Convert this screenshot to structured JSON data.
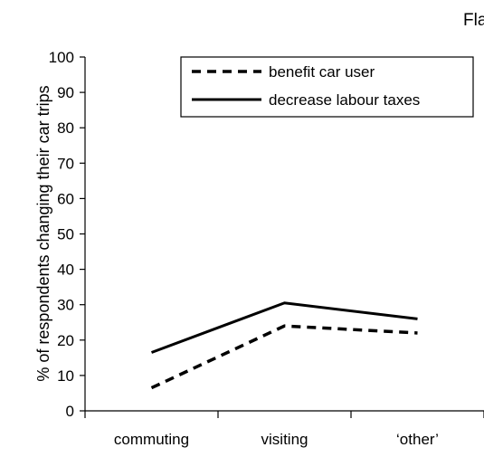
{
  "chart_data": {
    "type": "line",
    "title": "Fla",
    "ylabel": "% of respondents changing their car trips",
    "xlabel": "",
    "categories": [
      "commuting",
      "visiting",
      "‘other’"
    ],
    "ylim": [
      0,
      100
    ],
    "yticks": [
      0,
      10,
      20,
      30,
      40,
      50,
      60,
      70,
      80,
      90,
      100
    ],
    "grid": false,
    "legend_position": "top-right",
    "series": [
      {
        "name": "benefit car user",
        "style": "dashed",
        "color": "#000000",
        "values": [
          6.5,
          24,
          22
        ]
      },
      {
        "name": "decrease labour taxes",
        "style": "solid",
        "color": "#000000",
        "values": [
          16.5,
          30.5,
          26
        ]
      }
    ]
  }
}
